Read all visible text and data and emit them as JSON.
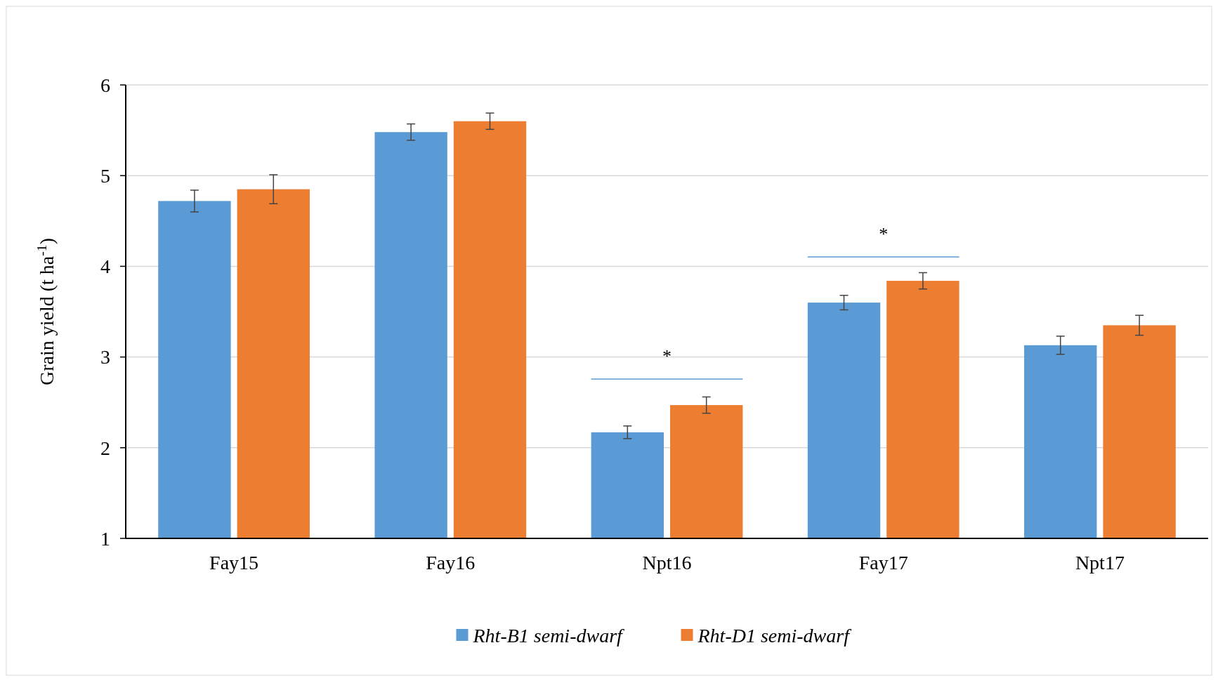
{
  "chart_data": {
    "type": "bar",
    "ylabel": "Grain yield (t ha$^{-1}$)",
    "categories": [
      "Fay15",
      "Fay16",
      "Npt16",
      "Fay17",
      "Npt17"
    ],
    "series": [
      {
        "name": "Rht-B1 semi-dwarf",
        "color": "#5b9bd5",
        "values": [
          4.72,
          5.48,
          2.17,
          3.6,
          3.13
        ],
        "errors": [
          0.12,
          0.09,
          0.07,
          0.08,
          0.1
        ]
      },
      {
        "name": "Rht-D1 semi-dwarf",
        "color": "#ed7d31",
        "values": [
          4.85,
          5.6,
          2.47,
          3.84,
          3.35
        ],
        "errors": [
          0.16,
          0.09,
          0.09,
          0.09,
          0.11
        ]
      }
    ],
    "ylim": [
      1,
      6
    ],
    "yticks": [
      1,
      2,
      3,
      4,
      5,
      6
    ],
    "grid": "y",
    "legend": "bottom",
    "annotations": [
      "*",
      "*"
    ]
  }
}
